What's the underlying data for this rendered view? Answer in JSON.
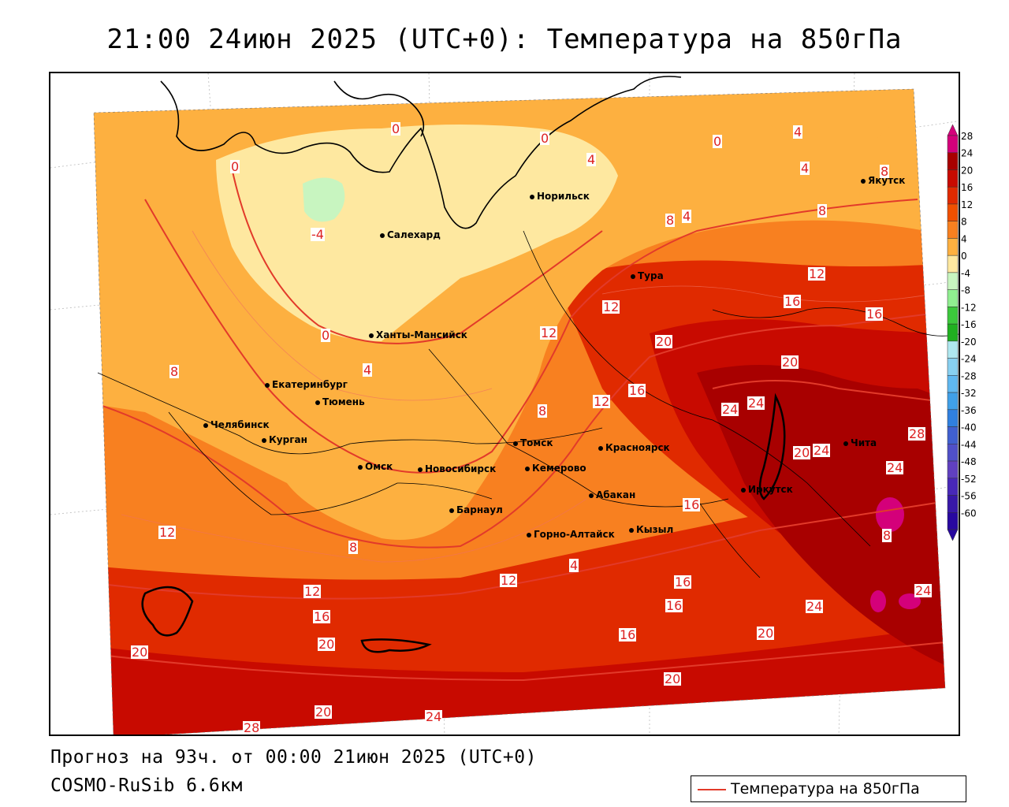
{
  "title": "21:00 24июн 2025 (UTC+0): Температура на 850гПа",
  "footer": {
    "forecast": "Прогноз на 93ч. от 00:00 21июн 2025 (UTC+0)",
    "model": "COSMO-RuSib 6.6км",
    "legend_label": "Температура на 850гПа"
  },
  "colors": {
    "isoline": "#e23a2a",
    "contour_label": "#dd2222"
  },
  "color_scale": {
    "ticks": [
      "28",
      "24",
      "20",
      "16",
      "12",
      "8",
      "4",
      "0",
      "-4",
      "-8",
      "-12",
      "-16",
      "-20",
      "-24",
      "-28",
      "-32",
      "-36",
      "-40",
      "-44",
      "-48",
      "-52",
      "-56",
      "-60"
    ],
    "colors": [
      "#d4007a",
      "#a80000",
      "#c80a00",
      "#e02a00",
      "#f05000",
      "#f88020",
      "#fdb040",
      "#fee8a0",
      "#c8f5c0",
      "#90ee90",
      "#3cc83c",
      "#20b020",
      "#b0e8f0",
      "#88d0f0",
      "#60b8f0",
      "#40a0e8",
      "#3080e0",
      "#4060d0",
      "#5050c8",
      "#6040c0",
      "#4828b8",
      "#3818a8",
      "#2808a0"
    ]
  },
  "cities": [
    {
      "name": "Норильск"
    },
    {
      "name": "Якутск"
    },
    {
      "name": "Салехард"
    },
    {
      "name": "Тура"
    },
    {
      "name": "Ханты-Мансийск"
    },
    {
      "name": "Екатеринбург"
    },
    {
      "name": "Тюмень"
    },
    {
      "name": "Челябинск"
    },
    {
      "name": "Курган"
    },
    {
      "name": "Омск"
    },
    {
      "name": "Томск"
    },
    {
      "name": "Красноярск"
    },
    {
      "name": "Новосибирск"
    },
    {
      "name": "Кемерово"
    },
    {
      "name": "Абакан"
    },
    {
      "name": "Барнаул"
    },
    {
      "name": "Иркутск"
    },
    {
      "name": "Чита"
    },
    {
      "name": "Горно-Алтайск"
    },
    {
      "name": "Кызыл"
    }
  ],
  "contour_labels": [
    "0",
    "0",
    "0",
    "0",
    "0",
    "-4",
    "4",
    "4",
    "4",
    "4",
    "4",
    "8",
    "8",
    "8",
    "8",
    "8",
    "8",
    "12",
    "12",
    "12",
    "12",
    "12",
    "12",
    "16",
    "16",
    "16",
    "16",
    "16",
    "16",
    "16",
    "16",
    "20",
    "20",
    "20",
    "20",
    "20",
    "20",
    "20",
    "20",
    "24",
    "24",
    "24",
    "24",
    "24",
    "24",
    "24",
    "28",
    "28",
    "8",
    "4",
    "12"
  ]
}
